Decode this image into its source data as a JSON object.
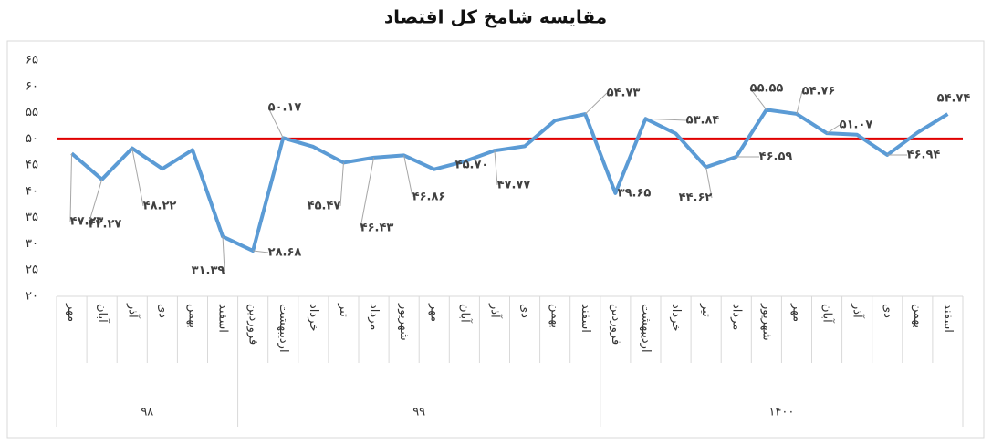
{
  "chart_data": {
    "type": "line",
    "title": "مقایسه شامخ کل اقتصاد",
    "groups": [
      {
        "label": "۹۸",
        "categories": [
          "مهر",
          "آبان",
          "آذر",
          "دی",
          "بهمن",
          "اسفند"
        ]
      },
      {
        "label": "۹۹",
        "categories": [
          "فروردین",
          "اردیبهشت",
          "خرداد",
          "تیر",
          "مرداد",
          "شهریور",
          "مهر",
          "آبان",
          "آذر",
          "دی",
          "بهمن",
          "اسفند"
        ]
      },
      {
        "label": "۱۴۰۰",
        "categories": [
          "فروردین",
          "اردیبهشت",
          "خرداد",
          "تیر",
          "مرداد",
          "شهریور",
          "مهر",
          "آبان",
          "آذر",
          "دی",
          "بهمن",
          "اسفند"
        ]
      }
    ],
    "series": [
      {
        "color": "#5b9bd5",
        "values": [
          47.23,
          42.27,
          48.22,
          44.3,
          47.9,
          31.39,
          28.68,
          50.17,
          48.5,
          45.47,
          46.43,
          46.86,
          44.2,
          45.7,
          47.77,
          48.6,
          53.5,
          54.73,
          39.65,
          53.84,
          51.0,
          44.62,
          46.59,
          55.55,
          54.76,
          51.07,
          50.8,
          46.94,
          51.2,
          54.74
        ],
        "value_labels": [
          "۴۷.۲۳",
          "۴۲.۲۷",
          "۴۸.۲۲",
          null,
          null,
          "۳۱.۳۹",
          "۲۸.۶۸",
          "۵۰.۱۷",
          null,
          "۴۵.۴۷",
          "۴۶.۴۳",
          "۴۶.۸۶",
          null,
          "۴۵.۷۰",
          "۴۷.۷۷",
          null,
          null,
          "۵۴.۷۳",
          "۳۹.۶۵",
          "۵۳.۸۴",
          null,
          "۴۴.۶۲",
          "۴۶.۵۹",
          "۵۵.۵۵",
          "۵۴.۷۶",
          "۵۱.۰۷",
          null,
          "۴۶.۹۴",
          null,
          "۵۴.۷۴"
        ]
      }
    ],
    "reference_line": {
      "value": 50,
      "color": "#e00000"
    },
    "ylim": [
      20,
      65
    ],
    "yticks": [
      {
        "value": 20,
        "label": "۲۰"
      },
      {
        "value": 25,
        "label": "۲۵"
      },
      {
        "value": 30,
        "label": "۳۰"
      },
      {
        "value": 35,
        "label": "۳۵"
      },
      {
        "value": 40,
        "label": "۴۰"
      },
      {
        "value": 45,
        "label": "۴۵"
      },
      {
        "value": 50,
        "label": "۵۰"
      },
      {
        "value": 55,
        "label": "۵۵"
      },
      {
        "value": 60,
        "label": "۶۰"
      },
      {
        "value": 65,
        "label": "۶۵"
      }
    ],
    "grid": false
  }
}
